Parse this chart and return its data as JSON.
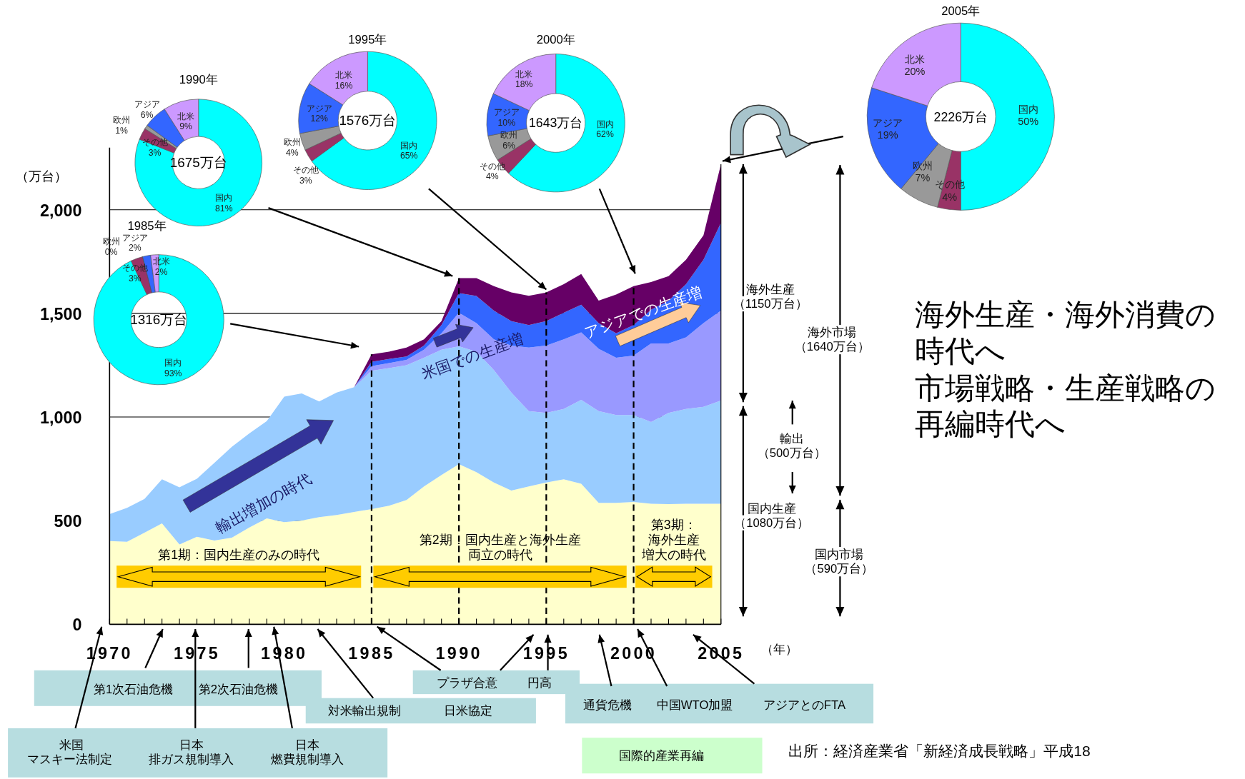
{
  "chart_data": [
    {
      "type": "area",
      "stacked": true,
      "ylabel": "（万台）",
      "xlabel": "（年）",
      "x": [
        1970,
        1971,
        1972,
        1973,
        1974,
        1975,
        1976,
        1977,
        1978,
        1979,
        1980,
        1981,
        1982,
        1983,
        1984,
        1985,
        1986,
        1987,
        1988,
        1989,
        1990,
        1991,
        1992,
        1993,
        1994,
        1995,
        1996,
        1997,
        1998,
        1999,
        2000,
        2001,
        2002,
        2003,
        2004,
        2005
      ],
      "xlim": [
        1970,
        2005
      ],
      "ylim": [
        0,
        2300
      ],
      "xticks": [
        1970,
        {
          "value": 1971,
          "label": null
        },
        {
          "value": 1972,
          "label": null
        },
        {
          "value": 1973,
          "label": null
        },
        {
          "value": 1974,
          "label": null
        },
        1975,
        {
          "value": 1976,
          "label": null
        },
        {
          "value": 1977,
          "label": null
        },
        {
          "value": 1978,
          "label": null
        },
        {
          "value": 1979,
          "label": null
        },
        1980,
        {
          "value": 1981,
          "label": null
        },
        {
          "value": 1982,
          "label": null
        },
        {
          "value": 1983,
          "label": null
        },
        {
          "value": 1984,
          "label": null
        },
        1985,
        {
          "value": 1986,
          "label": null
        },
        {
          "value": 1987,
          "label": null
        },
        {
          "value": 1988,
          "label": null
        },
        {
          "value": 1989,
          "label": null
        },
        1990,
        {
          "value": 1991,
          "label": null
        },
        {
          "value": 1992,
          "label": null
        },
        {
          "value": 1993,
          "label": null
        },
        {
          "value": 1994,
          "label": null
        },
        1995,
        {
          "value": 1996,
          "label": null
        },
        {
          "value": 1997,
          "label": null
        },
        {
          "value": 1998,
          "label": null
        },
        {
          "value": 1999,
          "label": null
        },
        2000,
        {
          "value": 2001,
          "label": null
        },
        {
          "value": 2002,
          "label": null
        },
        {
          "value": 2003,
          "label": null
        },
        {
          "value": 2004,
          "label": null
        },
        2005
      ],
      "yticks": [
        0,
        500,
        {
          "value": 1000,
          "label": "1,000"
        },
        {
          "value": 1500,
          "label": "1,500"
        },
        {
          "value": 2000,
          "label": "2,000"
        }
      ],
      "grid": "y",
      "series": [
        {
          "color": "#ffffcc",
          "values": [
            402,
            398,
            442,
            487,
            385,
            422,
            404,
            418,
            467,
            511,
            493,
            501,
            517,
            527,
            542,
            556,
            572,
            600,
            665,
            720,
            773,
            734,
            684,
            645,
            665,
            684,
            700,
            678,
            586,
            586,
            590,
            582,
            580,
            582,
            582,
            582
          ]
        },
        {
          "color": "#99ccff",
          "values": [
            130,
            164,
            163,
            213,
            276,
            280,
            375,
            438,
            454,
            469,
            605,
            613,
            558,
            591,
            602,
            667,
            664,
            650,
            621,
            605,
            568,
            581,
            543,
            473,
            364,
            336,
            339,
            405,
            443,
            424,
            420,
            394,
            440,
            457,
            467,
            497
          ]
        },
        {
          "color": "#9999ff",
          "values": [
            0,
            0,
            0,
            0,
            0,
            0,
            0,
            0,
            0,
            0,
            0,
            0,
            0,
            0,
            0,
            23,
            24,
            26,
            39,
            79,
            162,
            138,
            148,
            227,
            306,
            325,
            336,
            325,
            300,
            276,
            286,
            379,
            335,
            345,
            404,
            434
          ]
        },
        {
          "color": "#3366ff",
          "values": [
            0,
            0,
            0,
            0,
            0,
            0,
            0,
            0,
            0,
            0,
            0,
            0,
            0,
            0,
            0,
            20,
            20,
            16,
            20,
            40,
            95,
            131,
            138,
            118,
            109,
            118,
            128,
            134,
            124,
            118,
            148,
            163,
            207,
            257,
            306,
            424
          ]
        },
        {
          "color": "#660066",
          "values": [
            0,
            0,
            0,
            0,
            0,
            0,
            0,
            0,
            0,
            0,
            0,
            0,
            0,
            0,
            0,
            36,
            35,
            43,
            30,
            19,
            72,
            86,
            118,
            138,
            141,
            138,
            138,
            148,
            109,
            187,
            187,
            133,
            118,
            118,
            118,
            283
          ]
        }
      ],
      "ref_lines": [
        {
          "axis": "x",
          "value": 1985,
          "line_style": "dashed"
        },
        {
          "axis": "x",
          "value": 1990,
          "line_style": "dashed"
        },
        {
          "axis": "x",
          "value": 1995,
          "line_style": "dashed"
        },
        {
          "axis": "x",
          "value": 2000,
          "line_style": "dashed"
        }
      ],
      "bands": [
        {
          "axis": "x",
          "from": 1970.4,
          "to": 1984.4,
          "label": "第1期：国内生産のみの時代",
          "color": "#ffcc00"
        },
        {
          "axis": "x",
          "from": 1985.1,
          "to": 1999.6,
          "label": "第2期：国内生産と海外生産両立の時代",
          "color": "#ffcc00"
        },
        {
          "axis": "x",
          "from": 2000.1,
          "to": 2004.5,
          "label": "第3期：海外生産増大の時代",
          "color": "#ffcc00"
        }
      ],
      "annotations": [
        "輸出増加の時代",
        "米国での生産増",
        "アジアでの生産増",
        "海外生産",
        "（1150万台）",
        "輸出",
        "（500万台）",
        "国内生産",
        "（1080万台）",
        "海外市場",
        "（1640万台）",
        "国内市場",
        "（590万台）",
        "海外生産・海外消費の時代へ",
        "市場戦略・生産戦略の再編時代へ",
        "第1次石油危機",
        "第2次石油危機",
        "米国",
        "マスキー法制定",
        "日本",
        "排ガス規制導入",
        "日本",
        "燃費規制導入",
        "対米輸出規制",
        "日米協定",
        "プラザ合意",
        "円高",
        "通貨危機",
        "中国WTO加盟",
        "アジアとのFTA",
        "国際的産業再編",
        "出所：経済産業省「新経済成長戦略」平成18"
      ]
    },
    {
      "type": "donut",
      "title": "1985年",
      "categories": [
        "国内",
        "その他",
        "欧州",
        "アジア",
        "北米"
      ],
      "values": [
        93,
        3,
        0,
        2,
        2
      ],
      "colors": [
        "#00ffff",
        "#993366",
        "#999999",
        "#3366ff",
        "#cc99ff"
      ],
      "value_labels": [
        "93%",
        "3%",
        "0%",
        "2%",
        "2%"
      ],
      "annotations": [
        "1316万台"
      ]
    },
    {
      "type": "donut",
      "title": "1990年",
      "categories": [
        "国内",
        "その他",
        "欧州",
        "アジア",
        "北米"
      ],
      "values": [
        81,
        3,
        1,
        6,
        9
      ],
      "colors": [
        "#00ffff",
        "#993366",
        "#999999",
        "#3366ff",
        "#cc99ff"
      ],
      "value_labels": [
        "81%",
        "3%",
        "1%",
        "6%",
        "9%"
      ],
      "annotations": [
        "1675万台"
      ]
    },
    {
      "type": "donut",
      "title": "1995年",
      "categories": [
        "国内",
        "その他",
        "欧州",
        "アジア",
        "北米"
      ],
      "values": [
        65,
        3,
        4,
        12,
        16
      ],
      "colors": [
        "#00ffff",
        "#993366",
        "#999999",
        "#3366ff",
        "#cc99ff"
      ],
      "value_labels": [
        "65%",
        "3%",
        "4%",
        "12%",
        "16%"
      ],
      "annotations": [
        "1576万台"
      ]
    },
    {
      "type": "donut",
      "title": "2000年",
      "categories": [
        "国内",
        "その他",
        "欧州",
        "アジア",
        "北米"
      ],
      "values": [
        62,
        4,
        6,
        10,
        18
      ],
      "colors": [
        "#00ffff",
        "#993366",
        "#999999",
        "#3366ff",
        "#cc99ff"
      ],
      "value_labels": [
        "62%",
        "4%",
        "6%",
        "10%",
        "18%"
      ],
      "annotations": [
        "1643万台"
      ]
    },
    {
      "type": "donut",
      "title": "2005年",
      "categories": [
        "国内",
        "その他",
        "欧州",
        "アジア",
        "北米"
      ],
      "values": [
        50,
        4,
        7,
        19,
        20
      ],
      "colors": [
        "#00ffff",
        "#993366",
        "#999999",
        "#3366ff",
        "#cc99ff"
      ],
      "value_labels": [
        "50%",
        "4%",
        "7%",
        "19%",
        "20%"
      ],
      "annotations": [
        "2226万台"
      ]
    }
  ]
}
